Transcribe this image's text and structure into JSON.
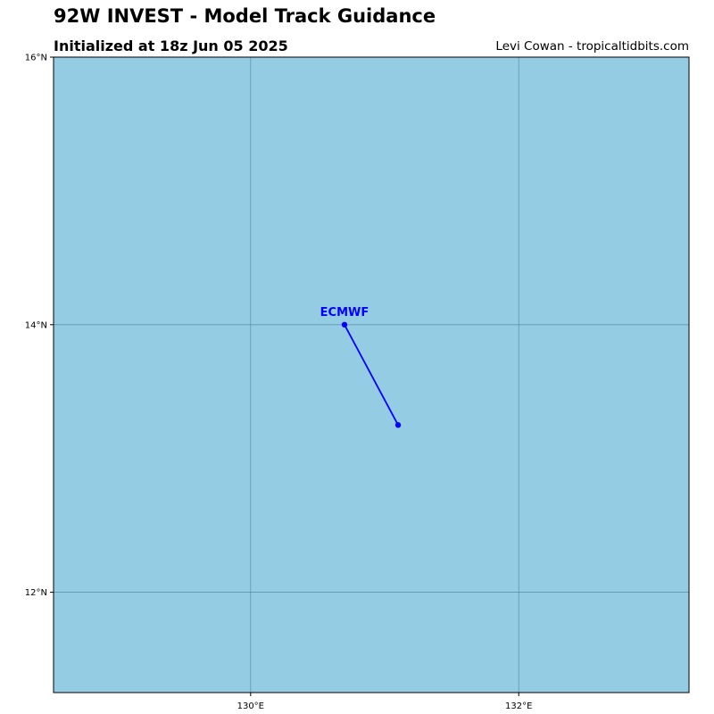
{
  "title": "92W INVEST - Model Track Guidance",
  "subtitle": "Initialized at 18z Jun 05 2025",
  "credit": "Levi Cowan - tropicaltidbits.com",
  "colors": {
    "ocean": "#94cde3",
    "gridline": "#4d7e93",
    "frame": "#000000",
    "track": "#0000ff"
  },
  "map": {
    "lon_range": [
      128.53,
      133.27
    ],
    "lat_range": [
      11.25,
      16.0
    ],
    "lon_ticks": [
      {
        "value": 130,
        "label": "130°E"
      },
      {
        "value": 132,
        "label": "132°E"
      }
    ],
    "lat_ticks": [
      {
        "value": 12,
        "label": "12°N"
      },
      {
        "value": 14,
        "label": "14°N"
      },
      {
        "value": 16,
        "label": "16°N"
      }
    ]
  },
  "tracks": [
    {
      "name": "ECMWF",
      "points": [
        {
          "lon": 130.7,
          "lat": 14.0
        },
        {
          "lon": 131.1,
          "lat": 13.25
        }
      ]
    }
  ]
}
